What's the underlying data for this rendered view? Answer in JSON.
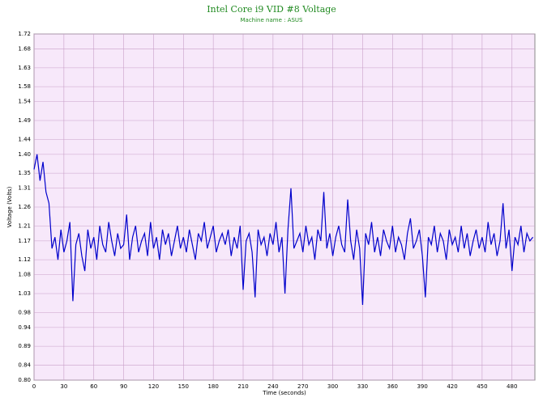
{
  "chart_data": {
    "type": "line",
    "title": "Intel Core i9 VID #8 Voltage",
    "subtitle": "Machine name : ASUS",
    "xlabel": "Time (seconds)",
    "ylabel": "Voltage (Volts)",
    "xlim": [
      0,
      503
    ],
    "ylim": [
      0.8,
      1.72
    ],
    "xticks": [
      0,
      30,
      60,
      90,
      120,
      150,
      180,
      210,
      240,
      270,
      300,
      330,
      360,
      390,
      420,
      450,
      480
    ],
    "yticks": [
      {
        "value": 0.8,
        "label": "0.80"
      },
      {
        "value": 0.84,
        "label": "0.84"
      },
      {
        "value": 0.89,
        "label": "0.89"
      },
      {
        "value": 0.94,
        "label": "0.94"
      },
      {
        "value": 0.98,
        "label": "0.98"
      },
      {
        "value": 1.03,
        "label": "1.03"
      },
      {
        "value": 1.08,
        "label": "1.08"
      },
      {
        "value": 1.12,
        "label": "1.12"
      },
      {
        "value": 1.17,
        "label": "1.17"
      },
      {
        "value": 1.21,
        "label": "1.21"
      },
      {
        "value": 1.26,
        "label": "1.26"
      },
      {
        "value": 1.31,
        "label": "1.31"
      },
      {
        "value": 1.35,
        "label": "1.35"
      },
      {
        "value": 1.4,
        "label": "1.40"
      },
      {
        "value": 1.44,
        "label": "1.44"
      },
      {
        "value": 1.49,
        "label": "1.49"
      },
      {
        "value": 1.54,
        "label": "1.54"
      },
      {
        "value": 1.58,
        "label": "1.58"
      },
      {
        "value": 1.63,
        "label": "1.63"
      },
      {
        "value": 1.68,
        "label": "1.68"
      },
      {
        "value": 1.72,
        "label": "1.72"
      }
    ],
    "grid": true,
    "x": [
      0,
      3,
      6,
      9,
      12,
      15,
      18,
      21,
      24,
      27,
      30,
      33,
      36,
      39,
      42,
      45,
      48,
      51,
      54,
      57,
      60,
      63,
      66,
      69,
      72,
      75,
      78,
      81,
      84,
      87,
      90,
      93,
      96,
      99,
      102,
      105,
      108,
      111,
      114,
      117,
      120,
      123,
      126,
      129,
      132,
      135,
      138,
      141,
      144,
      147,
      150,
      153,
      156,
      159,
      162,
      165,
      168,
      171,
      174,
      177,
      180,
      183,
      186,
      189,
      192,
      195,
      198,
      201,
      204,
      207,
      210,
      213,
      216,
      219,
      222,
      225,
      228,
      231,
      234,
      237,
      240,
      243,
      246,
      249,
      252,
      255,
      258,
      261,
      264,
      267,
      270,
      273,
      276,
      279,
      282,
      285,
      288,
      291,
      294,
      297,
      300,
      303,
      306,
      309,
      312,
      315,
      318,
      321,
      324,
      327,
      330,
      333,
      336,
      339,
      342,
      345,
      348,
      351,
      354,
      357,
      360,
      363,
      366,
      369,
      372,
      375,
      378,
      381,
      384,
      387,
      390,
      393,
      396,
      399,
      402,
      405,
      408,
      411,
      414,
      417,
      420,
      423,
      426,
      429,
      432,
      435,
      438,
      441,
      444,
      447,
      450,
      453,
      456,
      459,
      462,
      465,
      468,
      471,
      474,
      477,
      480,
      483,
      486,
      489,
      492,
      495,
      498,
      501
    ],
    "series": [
      {
        "name": "VID #8",
        "color": "#0000cc",
        "values": [
          1.36,
          1.4,
          1.33,
          1.38,
          1.3,
          1.27,
          1.15,
          1.18,
          1.12,
          1.2,
          1.14,
          1.17,
          1.22,
          1.01,
          1.16,
          1.19,
          1.13,
          1.09,
          1.2,
          1.15,
          1.18,
          1.12,
          1.21,
          1.16,
          1.14,
          1.22,
          1.17,
          1.13,
          1.19,
          1.15,
          1.16,
          1.24,
          1.12,
          1.18,
          1.21,
          1.14,
          1.17,
          1.19,
          1.13,
          1.22,
          1.15,
          1.18,
          1.12,
          1.2,
          1.16,
          1.19,
          1.13,
          1.17,
          1.21,
          1.15,
          1.18,
          1.14,
          1.2,
          1.16,
          1.12,
          1.19,
          1.17,
          1.22,
          1.15,
          1.18,
          1.21,
          1.14,
          1.17,
          1.19,
          1.16,
          1.2,
          1.13,
          1.18,
          1.15,
          1.21,
          1.04,
          1.17,
          1.19,
          1.14,
          1.02,
          1.2,
          1.16,
          1.18,
          1.13,
          1.19,
          1.16,
          1.22,
          1.14,
          1.18,
          1.03,
          1.2,
          1.31,
          1.15,
          1.17,
          1.19,
          1.14,
          1.21,
          1.16,
          1.18,
          1.12,
          1.2,
          1.17,
          1.3,
          1.15,
          1.19,
          1.13,
          1.18,
          1.21,
          1.16,
          1.14,
          1.28,
          1.17,
          1.12,
          1.2,
          1.15,
          1.0,
          1.19,
          1.16,
          1.22,
          1.14,
          1.18,
          1.13,
          1.2,
          1.17,
          1.15,
          1.21,
          1.14,
          1.18,
          1.16,
          1.12,
          1.19,
          1.23,
          1.15,
          1.17,
          1.2,
          1.13,
          1.02,
          1.18,
          1.16,
          1.21,
          1.14,
          1.19,
          1.17,
          1.12,
          1.2,
          1.16,
          1.18,
          1.14,
          1.21,
          1.15,
          1.19,
          1.13,
          1.17,
          1.2,
          1.15,
          1.18,
          1.14,
          1.22,
          1.16,
          1.19,
          1.13,
          1.17,
          1.27,
          1.15,
          1.2,
          1.09,
          1.18,
          1.16,
          1.21,
          1.14,
          1.19,
          1.17,
          1.18
        ]
      }
    ]
  }
}
